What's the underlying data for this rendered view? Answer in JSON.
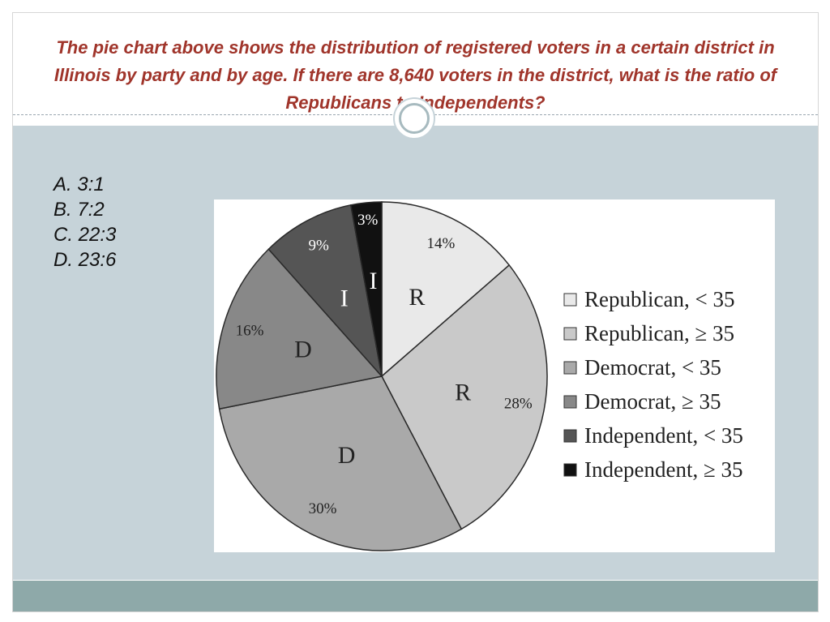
{
  "question": "The pie chart above shows the distribution of registered voters in a certain district in Illinois by party and by age. If there are 8,640 voters in the district, what is the ratio of Republicans to Independents?",
  "answers": [
    "A. 3:1",
    "B. 7:2",
    "C. 22:3",
    "D. 23:6"
  ],
  "colors": {
    "title": "#a0352b",
    "content_band": "#c6d3d9",
    "footer_band": "#8ea9a9"
  },
  "chart_data": {
    "type": "pie",
    "title": "",
    "slices": [
      {
        "label": "R",
        "value": 14,
        "value_label": "14%",
        "legend": "Republican, < 35",
        "color": "#e9e9e9"
      },
      {
        "label": "R",
        "value": 28,
        "value_label": "28%",
        "legend": "Republican, ≥ 35",
        "color": "#c9c9c9"
      },
      {
        "label": "D",
        "value": 30,
        "value_label": "30%",
        "legend": "Democrat, < 35",
        "color": "#a9a9a9"
      },
      {
        "label": "D",
        "value": 16,
        "value_label": "16%",
        "legend": "Democrat, ≥ 35",
        "color": "#888888"
      },
      {
        "label": "I",
        "value": 9,
        "value_label": "9%",
        "legend": "Independent, < 35",
        "color": "#555555"
      },
      {
        "label": "I",
        "value": 3,
        "value_label": "3%",
        "legend": "Independent, ≥ 35",
        "color": "#111111"
      }
    ],
    "legend_position": "right"
  }
}
